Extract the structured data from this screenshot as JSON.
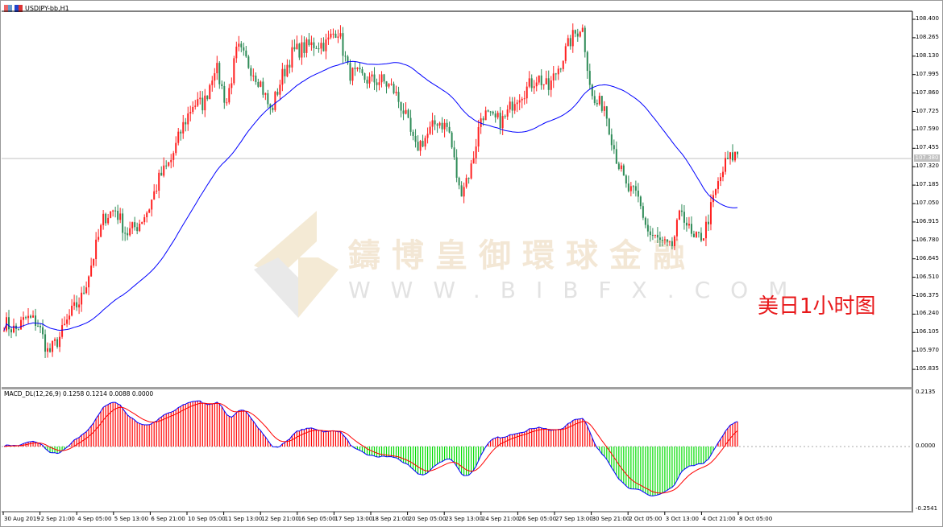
{
  "window": {
    "title": "USDJPY-bb,H1"
  },
  "indicator": {
    "label": "MACD_DL(12,26,9) 0.1258 0.1214 0.0088 0.0000"
  },
  "annotation": "美日1小时图",
  "watermark": {
    "cn": "鑄博皇御環球金融",
    "en": "WWW.BIBFX.COM"
  },
  "colors": {
    "bull": "#ff2020",
    "bear": "#2e8b57",
    "ma": "#0000ff",
    "macd_line": "#0000ff",
    "signal_line": "#ff0000",
    "hist_pos": "#ff0000",
    "hist_neg": "#00dd00",
    "annotation": "#e8191b"
  },
  "chart_data": [
    {
      "type": "candlestick",
      "symbol": "USDJPY-bb",
      "timeframe": "H1",
      "price_ticks": [
        "108.400",
        "108.265",
        "108.130",
        "107.995",
        "107.860",
        "107.725",
        "107.590",
        "107.455",
        "107.320",
        "107.185",
        "107.050",
        "106.915",
        "106.780",
        "106.645",
        "106.510",
        "106.375",
        "106.240",
        "106.105",
        "105.970",
        "105.835"
      ],
      "ylim": [
        105.76,
        108.5
      ],
      "current_price": "107.380",
      "x_ticks": [
        "30 Aug 2019",
        "2 Sep 21:00",
        "4 Sep 05:00",
        "5 Sep 13:00",
        "6 Sep 21:00",
        "10 Sep 05:00",
        "11 Sep 13:00",
        "12 Sep 21:00",
        "16 Sep 05:00",
        "17 Sep 13:00",
        "18 Sep 21:00",
        "20 Sep 05:00",
        "23 Sep 13:00",
        "24 Sep 21:00",
        "26 Sep 05:00",
        "27 Sep 13:00",
        "30 Sep 21:00",
        "2 Oct 05:00",
        "3 Oct 13:00",
        "4 Oct 21:00",
        "8 Oct 05:00"
      ],
      "approx_close_path": [
        106.18,
        106.12,
        106.21,
        106.18,
        105.95,
        106.07,
        106.24,
        106.36,
        106.65,
        106.95,
        107.01,
        106.83,
        106.89,
        107.01,
        107.24,
        107.36,
        107.6,
        107.78,
        107.78,
        108.07,
        107.78,
        108.19,
        108.07,
        107.95,
        107.72,
        107.98,
        108.16,
        108.19,
        108.22,
        108.22,
        108.34,
        108.01,
        107.98,
        107.95,
        107.95,
        107.89,
        107.72,
        107.45,
        107.54,
        107.66,
        107.6,
        107.13,
        107.3,
        107.72,
        107.66,
        107.66,
        107.83,
        107.89,
        107.98,
        107.89,
        108.07,
        108.25,
        108.36,
        107.78,
        107.78,
        107.42,
        107.16,
        107.1,
        106.83,
        106.77,
        106.71,
        107.01,
        106.77,
        106.83,
        107.13,
        107.36,
        107.42
      ],
      "moving_average": "blue line"
    },
    {
      "type": "bar+line",
      "name": "MACD_DL(12,26,9)",
      "values_shown": [
        0.1258,
        0.1214,
        0.0088,
        0.0
      ],
      "y_ticks": [
        "0.2135",
        "0.0000",
        "-0.2541"
      ],
      "ylim": [
        -0.2541,
        0.2135
      ]
    }
  ]
}
